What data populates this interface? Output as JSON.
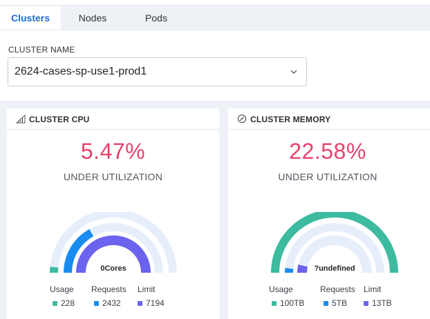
{
  "tabs": [
    {
      "label": "Clusters",
      "active": true
    },
    {
      "label": "Nodes",
      "active": false
    },
    {
      "label": "Pods",
      "active": false
    }
  ],
  "filter": {
    "label": "CLUSTER NAME",
    "value": "2624-cases-sp-use1-prod1"
  },
  "colors": {
    "usage": "#3dbba0",
    "requests": "#1a8cf0",
    "limit": "#6b63ee",
    "track": "#e7eefb",
    "highlight": "#e8416a"
  },
  "cards": [
    {
      "title": "CLUSTER CPU",
      "icon": "signal-bars-icon",
      "percent": "5.47%",
      "subtitle": "UNDER UTILIZATION",
      "center_text": "0Cores",
      "outer_ring_fraction": 0.03,
      "middle_ring_fraction": 0.34,
      "inner_ring_fraction": 1.0,
      "legend": [
        {
          "label": "Usage",
          "value": "228"
        },
        {
          "label": "Requests",
          "value": "2432"
        },
        {
          "label": "Limit",
          "value": "7194"
        }
      ]
    },
    {
      "title": "CLUSTER MEMORY",
      "icon": "pie-gauge-icon",
      "percent": "22.58%",
      "subtitle": "UNDER UTILIZATION",
      "center_text": "?undefined",
      "outer_ring_fraction": 1.0,
      "middle_ring_fraction": 0.03,
      "inner_ring_fraction": 0.07,
      "legend": [
        {
          "label": "Usage",
          "value": "100TB"
        },
        {
          "label": "Requests",
          "value": "5TB"
        },
        {
          "label": "Limit",
          "value": "13TB"
        }
      ]
    }
  ]
}
